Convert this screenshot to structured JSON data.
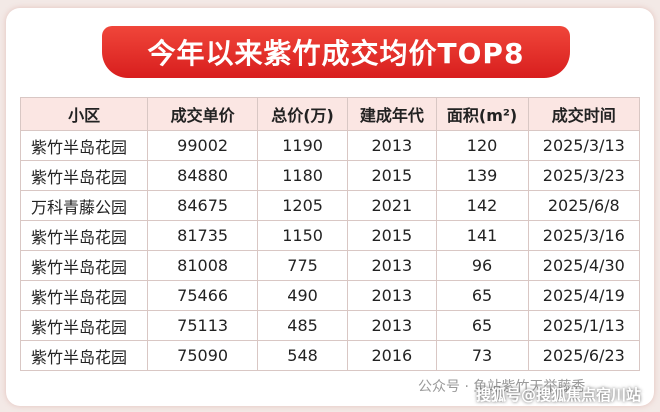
{
  "title": "今年以来紫竹成交均价TOP8",
  "table": {
    "header": [
      "小区",
      "成交单价",
      "总价(万)",
      "建成年代",
      "面积(m²)",
      "成交时间"
    ],
    "rows": [
      [
        "紫竹半岛花园",
        99002,
        1190,
        2013,
        120,
        "2025/3/13"
      ],
      [
        "紫竹半岛花园",
        84880,
        1180,
        2015,
        139,
        "2025/3/23"
      ],
      [
        "万科青藤公园",
        84675,
        1205,
        2021,
        142,
        "2025/6/8"
      ],
      [
        "紫竹半岛花园",
        81735,
        1150,
        2015,
        141,
        "2025/3/16"
      ],
      [
        "紫竹半岛花园",
        81008,
        775,
        2013,
        96,
        "2025/4/30"
      ],
      [
        "紫竹半岛花园",
        75466,
        490,
        2013,
        65,
        "2025/4/19"
      ],
      [
        "紫竹半岛花园",
        75113,
        485,
        2013,
        65,
        "2025/1/13"
      ],
      [
        "紫竹半岛花园",
        75090,
        548,
        2016,
        73,
        "2025/6/23"
      ]
    ]
  },
  "watermarks": [
    "公众号 · 鱼站紫竹天举藤秀",
    "搜狐号@搜狐焦点宿川站"
  ]
}
